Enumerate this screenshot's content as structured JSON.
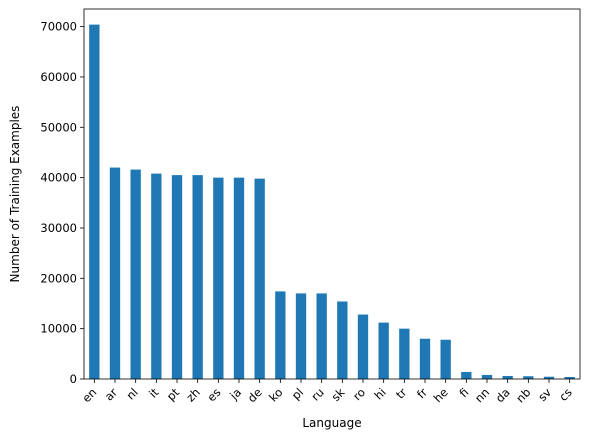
{
  "chart_data": {
    "type": "bar",
    "title": "",
    "xlabel": "Language",
    "ylabel": "Number of Training Examples",
    "categories": [
      "en",
      "ar",
      "nl",
      "it",
      "pt",
      "zh",
      "es",
      "ja",
      "de",
      "ko",
      "pl",
      "ru",
      "sk",
      "ro",
      "hi",
      "tr",
      "fr",
      "he",
      "fi",
      "nn",
      "da",
      "nb",
      "sv",
      "cs"
    ],
    "values": [
      70400,
      42000,
      41600,
      40800,
      40500,
      40500,
      40000,
      40000,
      39800,
      17400,
      17000,
      17000,
      15400,
      12800,
      11200,
      10000,
      8000,
      7800,
      1400,
      800,
      600,
      550,
      450,
      400
    ],
    "ylim": [
      0,
      73500
    ],
    "yticks": [
      0,
      10000,
      20000,
      30000,
      40000,
      50000,
      60000,
      70000
    ],
    "grid": false,
    "legend": false,
    "colors": {
      "bar": "#1f77b4",
      "axis": "#000000",
      "text": "#000000"
    }
  }
}
